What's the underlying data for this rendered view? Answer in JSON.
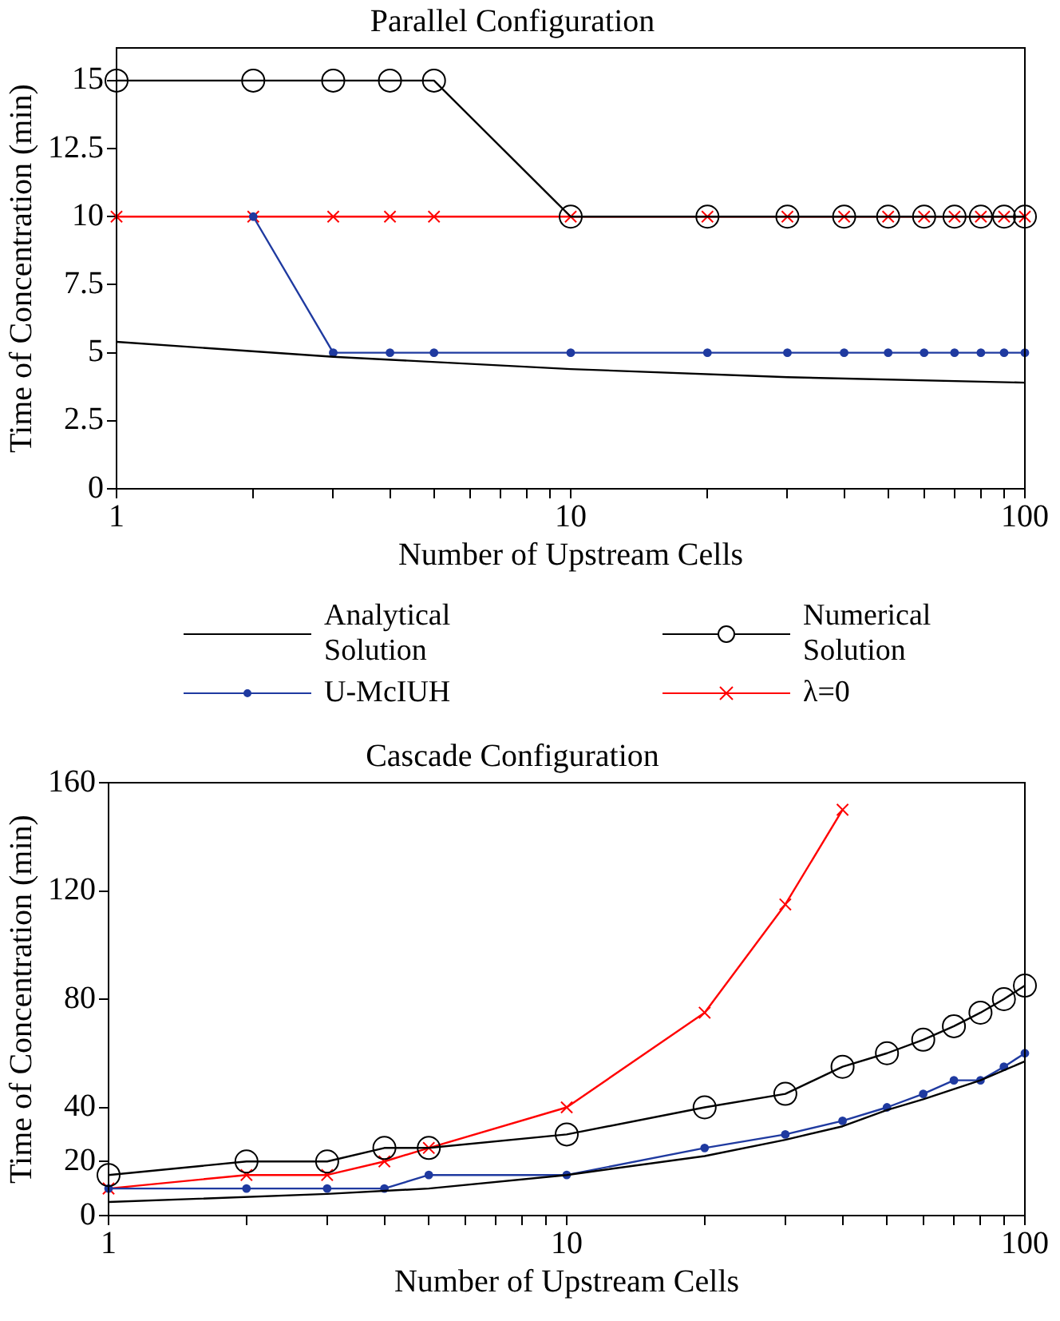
{
  "chart_data": [
    {
      "type": "line",
      "title": "Parallel Configuration",
      "xlabel": "Number of Upstream Cells",
      "ylabel": "Time of Concentration (min)",
      "log": "x",
      "xlim": [
        1,
        100
      ],
      "xticks": [
        1,
        {
          "value": 2,
          "label": null
        },
        {
          "value": 3,
          "label": null
        },
        {
          "value": 4,
          "label": null
        },
        {
          "value": 5,
          "label": null
        },
        {
          "value": 6,
          "label": null
        },
        {
          "value": 7,
          "label": null
        },
        {
          "value": 8,
          "label": null
        },
        {
          "value": 9,
          "label": null
        },
        10,
        {
          "value": 20,
          "label": null
        },
        {
          "value": 30,
          "label": null
        },
        {
          "value": 40,
          "label": null
        },
        {
          "value": 50,
          "label": null
        },
        {
          "value": 60,
          "label": null
        },
        {
          "value": 70,
          "label": null
        },
        {
          "value": 80,
          "label": null
        },
        {
          "value": 90,
          "label": null
        },
        100
      ],
      "ylim": [
        0,
        16.2
      ],
      "yticks": [
        0,
        2.5,
        5,
        7.5,
        10,
        12.5,
        15
      ],
      "grid": false,
      "legend": "bottom",
      "series": [
        {
          "name": "Analytical Solution",
          "color": "#000000",
          "marker": "none",
          "x": [
            1,
            3,
            10,
            30,
            100
          ],
          "values": [
            5.4,
            4.85,
            4.4,
            4.1,
            3.9
          ]
        },
        {
          "name": "Numerical Solution",
          "color": "#000000",
          "marker": "circle",
          "x": [
            1,
            2,
            3,
            4,
            5,
            10,
            20,
            30,
            40,
            50,
            60,
            70,
            80,
            90,
            100
          ],
          "values": [
            15,
            15,
            15,
            15,
            15,
            10,
            10,
            10,
            10,
            10,
            10,
            10,
            10,
            10,
            10
          ]
        },
        {
          "name": "U-McIUH",
          "color": "#1f3aa0",
          "marker": "circle",
          "x": [
            2,
            3,
            4,
            5,
            10,
            20,
            30,
            40,
            50,
            60,
            70,
            80,
            90,
            100
          ],
          "values": [
            10,
            5,
            5,
            5,
            5,
            5,
            5,
            5,
            5,
            5,
            5,
            5,
            5,
            5
          ]
        },
        {
          "name": "λ=0",
          "color": "#ff0000",
          "marker": "cross",
          "x": [
            1,
            2,
            3,
            4,
            5,
            10,
            20,
            30,
            40,
            50,
            60,
            70,
            80,
            90,
            100
          ],
          "values": [
            10,
            10,
            10,
            10,
            10,
            10,
            10,
            10,
            10,
            10,
            10,
            10,
            10,
            10,
            10
          ]
        }
      ]
    },
    {
      "type": "line",
      "title": "Cascade Configuration",
      "xlabel": "Number of Upstream Cells",
      "ylabel": "Time of Concentration (min)",
      "log": "x",
      "xlim": [
        1,
        100
      ],
      "xticks": [
        1,
        {
          "value": 2,
          "label": null
        },
        {
          "value": 3,
          "label": null
        },
        {
          "value": 4,
          "label": null
        },
        {
          "value": 5,
          "label": null
        },
        {
          "value": 6,
          "label": null
        },
        {
          "value": 7,
          "label": null
        },
        {
          "value": 8,
          "label": null
        },
        {
          "value": 9,
          "label": null
        },
        10,
        {
          "value": 20,
          "label": null
        },
        {
          "value": 30,
          "label": null
        },
        {
          "value": 40,
          "label": null
        },
        {
          "value": 50,
          "label": null
        },
        {
          "value": 60,
          "label": null
        },
        {
          "value": 70,
          "label": null
        },
        {
          "value": 80,
          "label": null
        },
        {
          "value": 90,
          "label": null
        },
        100
      ],
      "ylim": [
        0,
        160
      ],
      "yticks": [
        0,
        20,
        40,
        80,
        120,
        160
      ],
      "grid": false,
      "series": [
        {
          "color": "#000000",
          "marker": "none",
          "x": [
            1,
            3,
            5,
            10,
            20,
            30,
            40,
            50,
            60,
            80,
            100
          ],
          "values": [
            5,
            8,
            10,
            15,
            22,
            28,
            33,
            39,
            43,
            50,
            57
          ]
        },
        {
          "color": "#000000",
          "marker": "circle",
          "x": [
            1,
            2,
            3,
            4,
            5,
            10,
            20,
            30,
            40,
            50,
            60,
            70,
            80,
            90,
            100
          ],
          "values": [
            15,
            20,
            20,
            25,
            25,
            30,
            40,
            45,
            55,
            60,
            65,
            70,
            75,
            80,
            85
          ]
        },
        {
          "color": "#1f3aa0",
          "marker": "circle",
          "x": [
            1,
            2,
            3,
            4,
            5,
            10,
            20,
            30,
            40,
            50,
            60,
            70,
            80,
            90,
            100
          ],
          "values": [
            10,
            10,
            10,
            10,
            15,
            15,
            25,
            30,
            35,
            40,
            45,
            50,
            50,
            55,
            60
          ]
        },
        {
          "color": "#ff0000",
          "marker": "cross",
          "x": [
            1,
            2,
            3,
            4,
            5,
            10,
            20,
            30,
            40
          ],
          "values": [
            10,
            15,
            15,
            20,
            25,
            40,
            75,
            115,
            150
          ]
        }
      ]
    }
  ]
}
